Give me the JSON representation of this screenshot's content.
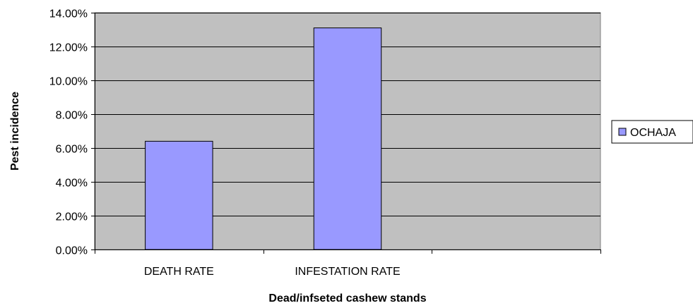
{
  "chart_data": {
    "type": "bar",
    "title": "",
    "xlabel": "Dead/infseted cashew stands",
    "ylabel": "Pest incidence",
    "categories": [
      "DEATH RATE",
      "INFESTATION RATE",
      ""
    ],
    "series": [
      {
        "name": "OCHAJA",
        "values": [
          6.4,
          13.1,
          null
        ],
        "color": "#9999ff"
      }
    ],
    "ylim": [
      0,
      14
    ],
    "yticks": [
      0,
      2,
      4,
      6,
      8,
      10,
      12,
      14
    ],
    "ytick_labels": [
      "0.00%",
      "2.00%",
      "4.00%",
      "6.00%",
      "8.00%",
      "10.00%",
      "12.00%",
      "14.00%"
    ],
    "grid": true,
    "legend_position": "right",
    "plot_background": "#c0c0c0"
  }
}
